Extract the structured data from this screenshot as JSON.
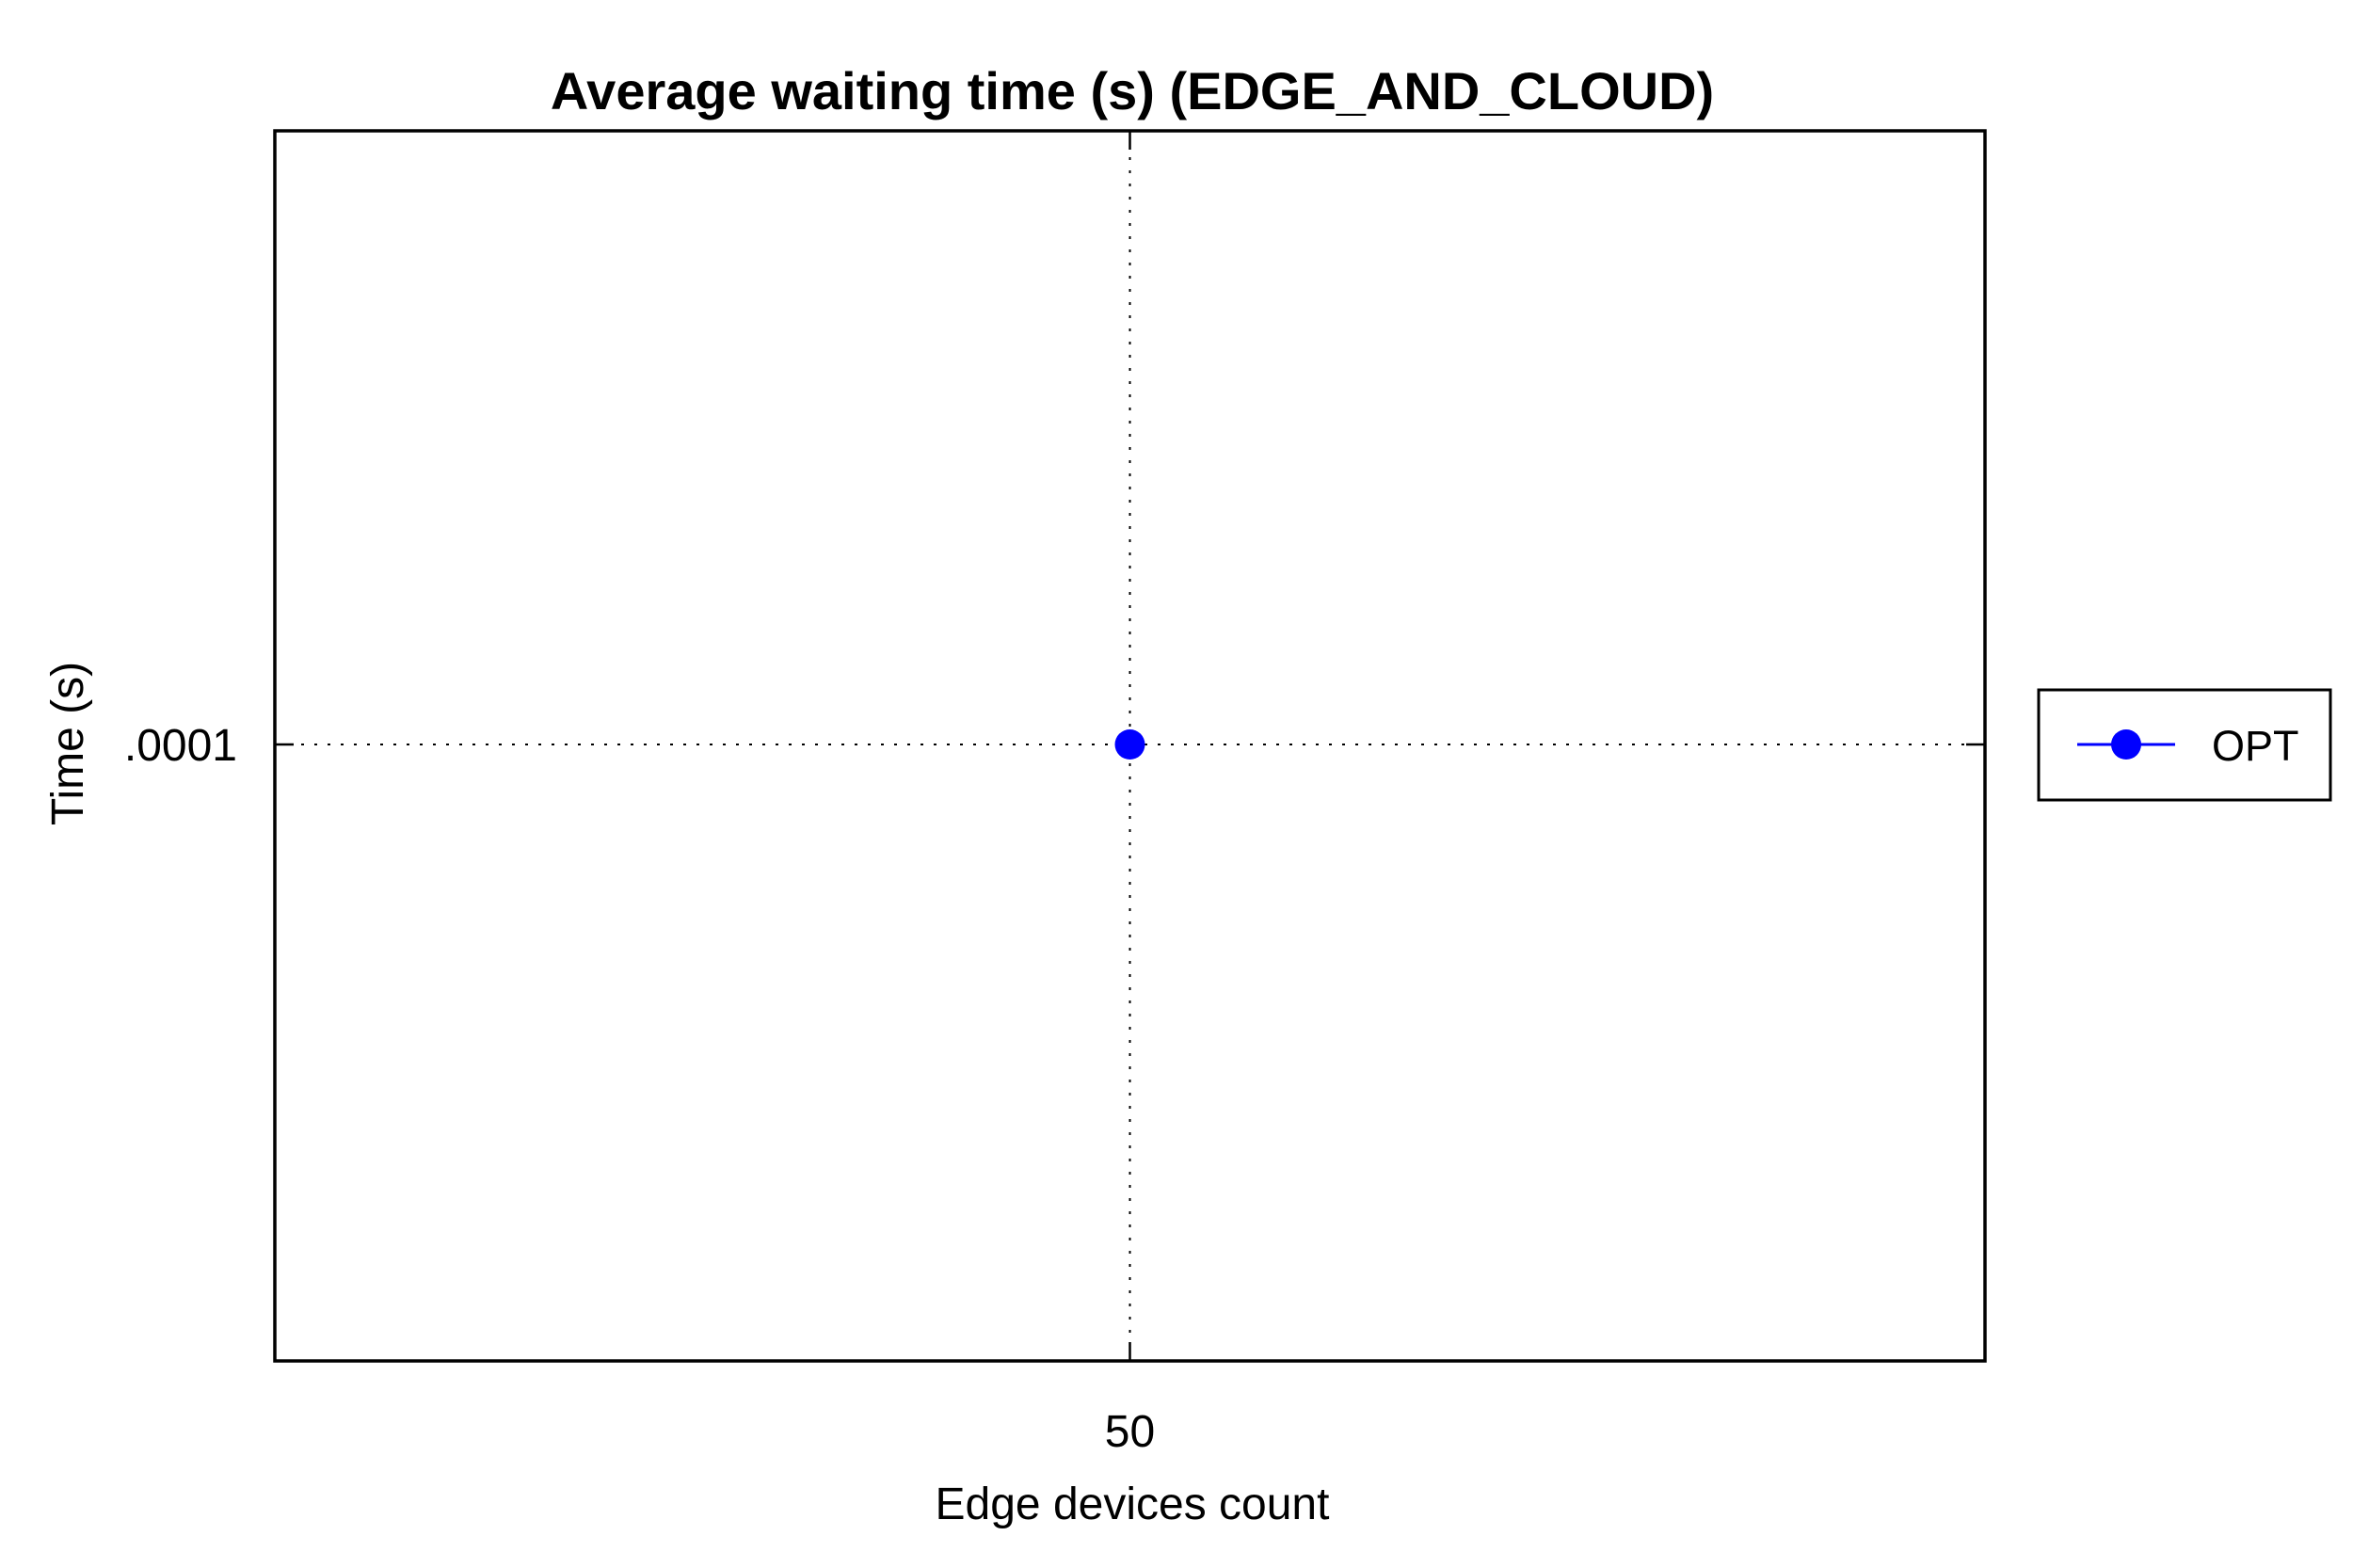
{
  "chart_data": {
    "type": "line",
    "title": "Average waiting time (s) (EDGE_AND_CLOUD)",
    "xlabel": "Edge devices count",
    "ylabel": "Time (s)",
    "x_ticks": [
      "50"
    ],
    "y_ticks": [
      ".0001"
    ],
    "grid": true,
    "legend_position": "right",
    "series": [
      {
        "name": "OPT",
        "color": "#0000ff",
        "marker": "filled-circle",
        "x": [
          50
        ],
        "y": [
          0.0001
        ]
      }
    ]
  }
}
